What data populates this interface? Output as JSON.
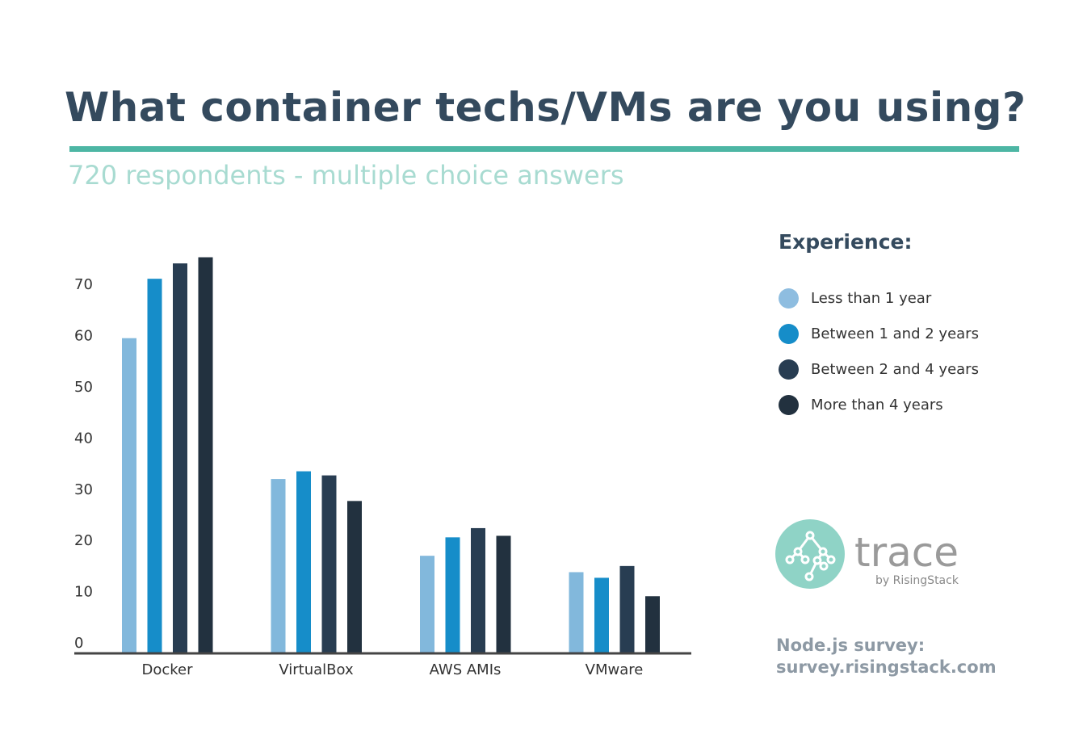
{
  "title": "What container techs/VMs are you using?",
  "subtitle": "720 respondents - multiple choice answers",
  "legend_title": "Experience:",
  "logo": {
    "name": "trace",
    "tagline": "by RisingStack"
  },
  "footer": {
    "line1": "Node.js survey:",
    "line2": "survey.risingstack.com"
  },
  "chart_data": {
    "type": "bar",
    "title": "What container techs/VMs are you using?",
    "xlabel": "",
    "ylabel": "",
    "categories": [
      "Docker",
      "VirtualBox",
      "AWS AMIs",
      "VMware"
    ],
    "yticks": [
      0,
      10,
      20,
      30,
      40,
      50,
      60,
      70
    ],
    "ylim": [
      0,
      77
    ],
    "grid": false,
    "legend_position": "right",
    "series": [
      {
        "name": "Less than 1 year",
        "color": "#82b8dc",
        "values": [
          61.4,
          33.9,
          18.9,
          15.7
        ]
      },
      {
        "name": "Between 1 and 2 years",
        "color": "#168dc9",
        "values": [
          73.0,
          35.4,
          22.5,
          14.6
        ]
      },
      {
        "name": "Between 2 and 4 years",
        "color": "#283d52",
        "values": [
          76.0,
          34.6,
          24.3,
          16.9
        ]
      },
      {
        "name": "More than 4 years",
        "color": "#22313f",
        "values": [
          77.2,
          29.6,
          22.8,
          11.0
        ]
      }
    ]
  }
}
